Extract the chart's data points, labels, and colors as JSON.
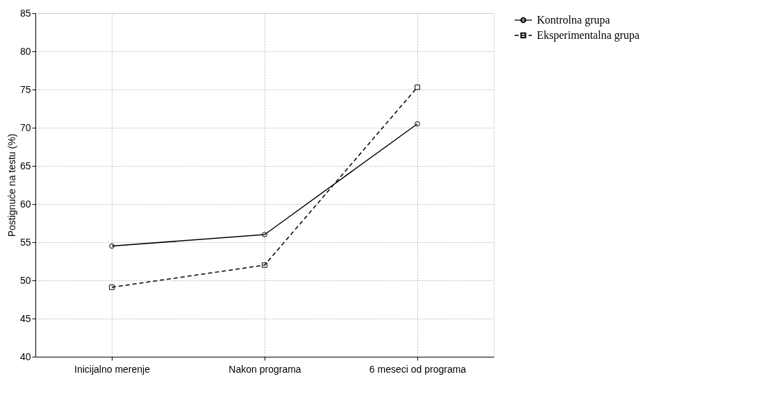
{
  "chart_data": {
    "type": "line",
    "ylabel": "Postignuće na testu (%)",
    "categories": [
      "Inicijalno merenje",
      "Nakon programa",
      "6 meseci od programa"
    ],
    "series": [
      {
        "name": "Kontrolna grupa",
        "color": "#000000",
        "values": [
          54.5,
          56.0,
          70.5
        ],
        "marker": "circle",
        "line_style": "solid"
      },
      {
        "name": "Eksperimentalna grupa",
        "color": "#000000",
        "values": [
          49.1,
          52.0,
          75.3
        ],
        "marker": "square",
        "line_style": "dashed"
      }
    ],
    "ylim": [
      40,
      85
    ],
    "yticks": [
      40,
      45,
      50,
      55,
      60,
      65,
      70,
      75,
      80,
      85
    ],
    "grid": true,
    "legend": "top right"
  }
}
